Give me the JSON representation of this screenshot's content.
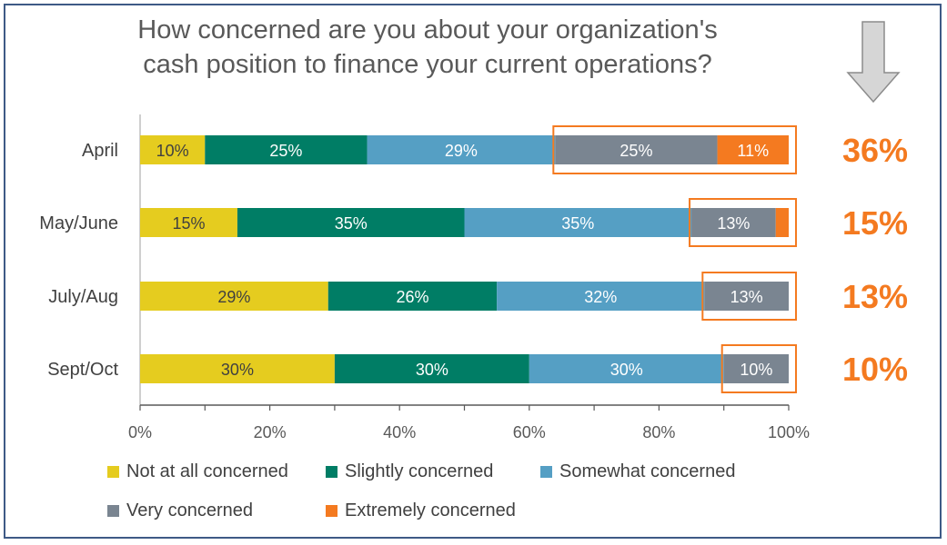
{
  "title_line1": "How concerned are you about your organization's",
  "title_line2": "cash position to finance your current operations?",
  "chart_data": {
    "type": "bar",
    "orientation": "horizontal",
    "stacked": true,
    "categories": [
      "April",
      "May/June",
      "July/Aug",
      "Sept/Oct"
    ],
    "series": [
      {
        "name": "Not at all concerned",
        "color": "#e5cc1f",
        "values": [
          10,
          15,
          29,
          30
        ]
      },
      {
        "name": "Slightly concerned",
        "color": "#007d65",
        "values": [
          25,
          35,
          26,
          30
        ]
      },
      {
        "name": "Somewhat concerned",
        "color": "#559fc4",
        "values": [
          29,
          35,
          32,
          30
        ]
      },
      {
        "name": "Very concerned",
        "color": "#7a8591",
        "values": [
          25,
          13,
          13,
          10
        ]
      },
      {
        "name": "Extremely concerned",
        "color": "#f47a20",
        "values": [
          11,
          2,
          0,
          0
        ]
      }
    ],
    "data_labels": [
      [
        "10%",
        "25%",
        "29%",
        "25%",
        "11%"
      ],
      [
        "15%",
        "35%",
        "35%",
        "13%",
        ""
      ],
      [
        "29%",
        "26%",
        "32%",
        "13%",
        ""
      ],
      [
        "30%",
        "30%",
        "30%",
        "10%",
        ""
      ]
    ],
    "xlim": [
      0,
      100
    ],
    "xticks": [
      "0%",
      "20%",
      "40%",
      "60%",
      "80%",
      "100%"
    ],
    "highlight_totals": [
      "36%",
      "15%",
      "13%",
      "10%"
    ],
    "highlight_color": "#f47a20",
    "legend_position": "bottom"
  }
}
